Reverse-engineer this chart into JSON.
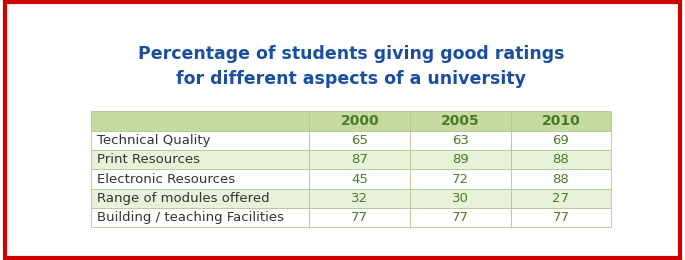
{
  "title_line1": "Percentage of students giving good ratings",
  "title_line2": "for different aspects of a university",
  "title_color": "#1a4fa0",
  "years": [
    "2000",
    "2005",
    "2010"
  ],
  "row_labels": [
    "Technical Quality",
    "Print Resources",
    "Electronic Resources",
    "Range of modules offered",
    "Building / teaching Facilities"
  ],
  "data": [
    [
      65,
      63,
      69
    ],
    [
      87,
      89,
      88
    ],
    [
      45,
      72,
      88
    ],
    [
      32,
      30,
      27
    ],
    [
      77,
      77,
      77
    ]
  ],
  "header_bg": "#c5d9a0",
  "row_bg_even": "#ffffff",
  "row_bg_odd": "#e8f2da",
  "text_color_data": "#4a7c28",
  "text_color_label": "#333333",
  "border_color": "#cc0000",
  "border_lw": 3,
  "outer_bg": "#ffffff",
  "title_fontsize_pt": 12.5,
  "data_fontsize_pt": 9.5,
  "label_fontsize_pt": 9.5,
  "header_fontsize_pt": 10.0
}
